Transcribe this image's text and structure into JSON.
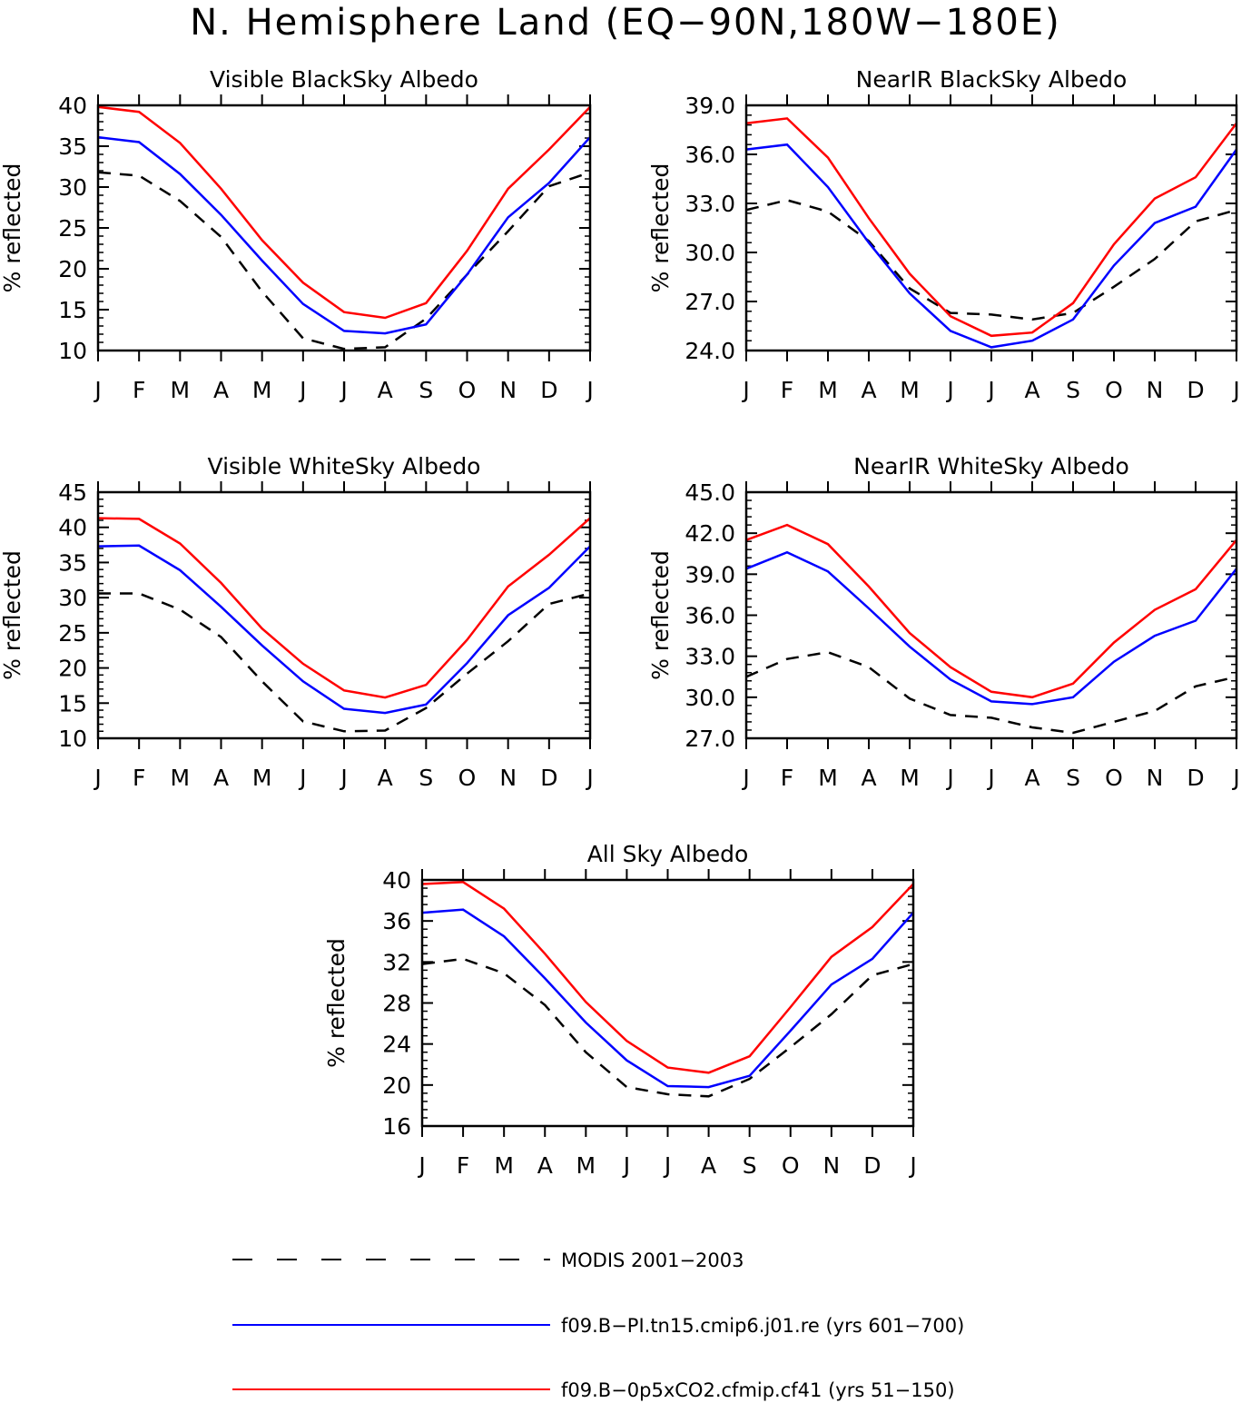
{
  "figure_title": "N. Hemisphere Land (EQ−90N,180W−180E)",
  "months": [
    "J",
    "F",
    "M",
    "A",
    "M",
    "J",
    "J",
    "A",
    "S",
    "O",
    "N",
    "D",
    "J"
  ],
  "ylabel": "% reflected",
  "colors": {
    "modis": "#000000",
    "pi": "#0000ff",
    "co2": "#ff0000"
  },
  "legend": [
    {
      "key": "modis",
      "label": "MODIS 2001−2003",
      "style": "dashed"
    },
    {
      "key": "pi",
      "label": "f09.B−PI.tn15.cmip6.j01.re (yrs 601−700)",
      "style": "solid"
    },
    {
      "key": "co2",
      "label": "f09.B−0p5xCO2.cfmip.cf41 (yrs 51−150)",
      "style": "solid"
    }
  ],
  "chart_data": [
    {
      "type": "line",
      "title": "Visible BlackSky Albedo",
      "ylabel": "% reflected",
      "ylim": [
        10,
        40
      ],
      "yticks": [
        "10",
        "15",
        "20",
        "25",
        "30",
        "35",
        "40"
      ],
      "series": [
        {
          "key": "modis",
          "name": "MODIS 2001−2003",
          "values": [
            31.8,
            31.4,
            28.3,
            23.9,
            17.2,
            11.5,
            10.2,
            10.4,
            13.9,
            19.3,
            24.6,
            30.1,
            31.8
          ]
        },
        {
          "key": "pi",
          "name": "f09.B−PI.tn15.cmip6.j01.re (yrs 601−700)",
          "values": [
            36.1,
            35.5,
            31.6,
            26.6,
            21.0,
            15.7,
            12.4,
            12.1,
            13.2,
            19.3,
            26.3,
            30.5,
            36.1
          ]
        },
        {
          "key": "co2",
          "name": "f09.B−0p5xCO2.cfmip.cf41 (yrs 51−150)",
          "values": [
            39.8,
            39.2,
            35.4,
            29.8,
            23.5,
            18.3,
            14.7,
            14.0,
            15.8,
            22.2,
            29.8,
            34.6,
            39.8
          ]
        }
      ]
    },
    {
      "type": "line",
      "title": "NearIR BlackSky Albedo",
      "ylabel": "% reflected",
      "ylim": [
        24,
        39
      ],
      "yticks": [
        "24.0",
        "27.0",
        "30.0",
        "33.0",
        "36.0",
        "39.0"
      ],
      "series": [
        {
          "key": "modis",
          "name": "MODIS 2001−2003",
          "values": [
            32.6,
            33.2,
            32.5,
            30.7,
            27.8,
            26.3,
            26.2,
            25.9,
            26.3,
            27.9,
            29.6,
            31.9,
            32.6
          ]
        },
        {
          "key": "pi",
          "name": "f09.B−PI.tn15.cmip6.j01.re (yrs 601−700)",
          "values": [
            36.3,
            36.6,
            34.0,
            30.6,
            27.5,
            25.2,
            24.2,
            24.6,
            25.9,
            29.2,
            31.8,
            32.8,
            36.3
          ]
        },
        {
          "key": "co2",
          "name": "f09.B−0p5xCO2.cfmip.cf41 (yrs 51−150)",
          "values": [
            37.9,
            38.2,
            35.8,
            32.1,
            28.7,
            26.1,
            24.9,
            25.1,
            26.9,
            30.5,
            33.3,
            34.6,
            37.9
          ]
        }
      ]
    },
    {
      "type": "line",
      "title": "Visible WhiteSky Albedo",
      "ylabel": "% reflected",
      "ylim": [
        10,
        45
      ],
      "yticks": [
        "10",
        "15",
        "20",
        "25",
        "30",
        "35",
        "40",
        "45"
      ],
      "series": [
        {
          "key": "modis",
          "name": "MODIS 2001−2003",
          "values": [
            30.6,
            30.6,
            28.3,
            24.4,
            18.1,
            12.4,
            11.0,
            11.1,
            14.3,
            19.2,
            23.8,
            29.1,
            30.6
          ]
        },
        {
          "key": "pi",
          "name": "f09.B−PI.tn15.cmip6.j01.re (yrs 601−700)",
          "values": [
            37.3,
            37.4,
            33.9,
            28.7,
            23.2,
            18.1,
            14.2,
            13.6,
            14.8,
            20.7,
            27.5,
            31.4,
            37.3
          ]
        },
        {
          "key": "co2",
          "name": "f09.B−0p5xCO2.cfmip.cf41 (yrs 51−150)",
          "values": [
            41.3,
            41.2,
            37.7,
            32.1,
            25.6,
            20.6,
            16.8,
            15.8,
            17.6,
            24.0,
            31.6,
            36.1,
            41.3
          ]
        }
      ]
    },
    {
      "type": "line",
      "title": "NearIR WhiteSky Albedo",
      "ylabel": "% reflected",
      "ylim": [
        27,
        45
      ],
      "yticks": [
        "27.0",
        "30.0",
        "33.0",
        "36.0",
        "39.0",
        "42.0",
        "45.0"
      ],
      "series": [
        {
          "key": "modis",
          "name": "MODIS 2001−2003",
          "values": [
            31.5,
            32.8,
            33.3,
            32.2,
            29.9,
            28.7,
            28.5,
            27.8,
            27.4,
            28.2,
            29.0,
            30.8,
            31.5
          ]
        },
        {
          "key": "pi",
          "name": "f09.B−PI.tn15.cmip6.j01.re (yrs 601−700)",
          "values": [
            39.4,
            40.6,
            39.2,
            36.5,
            33.7,
            31.3,
            29.7,
            29.5,
            30.0,
            32.6,
            34.5,
            35.6,
            39.4
          ]
        },
        {
          "key": "co2",
          "name": "f09.B−0p5xCO2.cfmip.cf41 (yrs 51−150)",
          "values": [
            41.5,
            42.6,
            41.2,
            38.1,
            34.7,
            32.2,
            30.4,
            30.0,
            31.0,
            34.0,
            36.4,
            37.9,
            41.5
          ]
        }
      ]
    },
    {
      "type": "line",
      "title": "All Sky Albedo",
      "ylabel": "% reflected",
      "ylim": [
        16,
        40
      ],
      "yticks": [
        "16",
        "20",
        "24",
        "28",
        "32",
        "36",
        "40"
      ],
      "series": [
        {
          "key": "modis",
          "name": "MODIS 2001−2003",
          "values": [
            31.8,
            32.3,
            30.9,
            27.8,
            23.2,
            19.8,
            19.1,
            18.9,
            20.6,
            23.7,
            26.9,
            30.7,
            31.8
          ]
        },
        {
          "key": "pi",
          "name": "f09.B−PI.tn15.cmip6.j01.re (yrs 601−700)",
          "values": [
            36.8,
            37.1,
            34.5,
            30.4,
            26.1,
            22.4,
            19.9,
            19.8,
            20.9,
            25.3,
            29.8,
            32.3,
            36.8
          ]
        },
        {
          "key": "co2",
          "name": "f09.B−0p5xCO2.cfmip.cf41 (yrs 51−150)",
          "values": [
            39.6,
            39.8,
            37.2,
            32.8,
            28.1,
            24.3,
            21.7,
            21.2,
            22.8,
            27.6,
            32.5,
            35.4,
            39.6
          ]
        }
      ]
    }
  ]
}
